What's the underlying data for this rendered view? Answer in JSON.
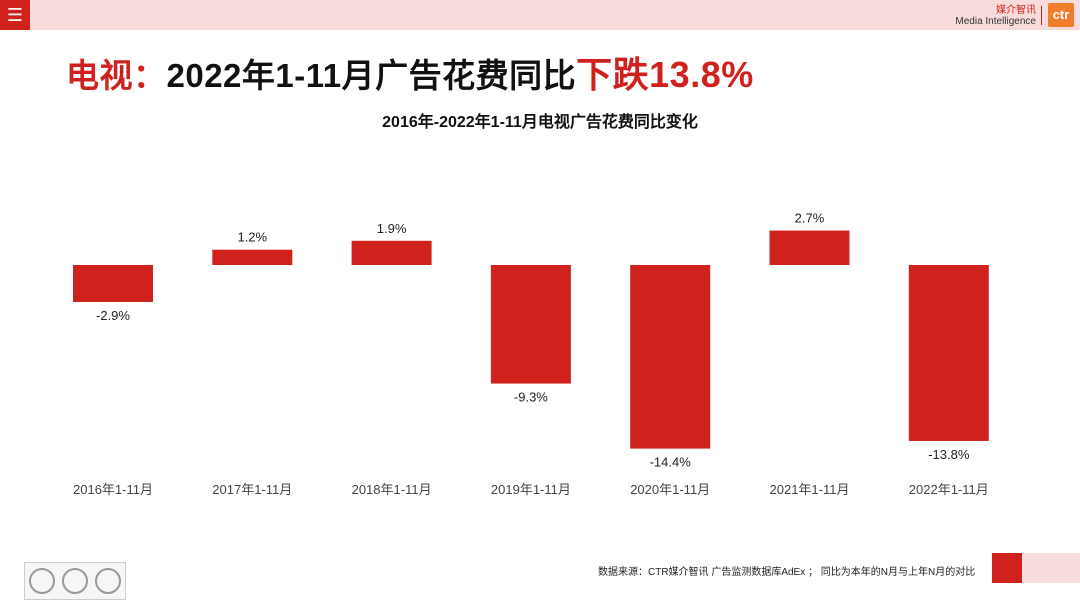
{
  "header": {
    "menu_icon": "menu-icon",
    "brand_cn": "媒介智讯",
    "brand_en": "Media Intelligence",
    "brand_logo": "ctr"
  },
  "headline": {
    "part1": "电视：",
    "part2": "2022年1-11月广告花费同比",
    "part3": "下跌",
    "part4": "13.8%"
  },
  "chart_data": {
    "type": "bar",
    "title": "2016年-2022年1-11月电视广告花费同比变化",
    "categories": [
      "2016年1-11月",
      "2017年1-11月",
      "2018年1-11月",
      "2019年1-11月",
      "2020年1-11月",
      "2021年1-11月",
      "2022年1-11月"
    ],
    "values": [
      -2.9,
      1.2,
      1.9,
      -9.3,
      -14.4,
      2.7,
      -13.8
    ],
    "value_labels": [
      "-2.9%",
      "1.2%",
      "1.9%",
      "-9.3%",
      "-14.4%",
      "2.7%",
      "-13.8%"
    ],
    "unit": "%",
    "bar_color": "#d0221c",
    "ylim": [
      -15,
      5
    ],
    "grid": false,
    "legend": "none"
  },
  "footer": {
    "source": "数据来源：CTR媒介智讯 广告监测数据库AdEx ； 同比为本年的N月与上年N月的对比"
  }
}
